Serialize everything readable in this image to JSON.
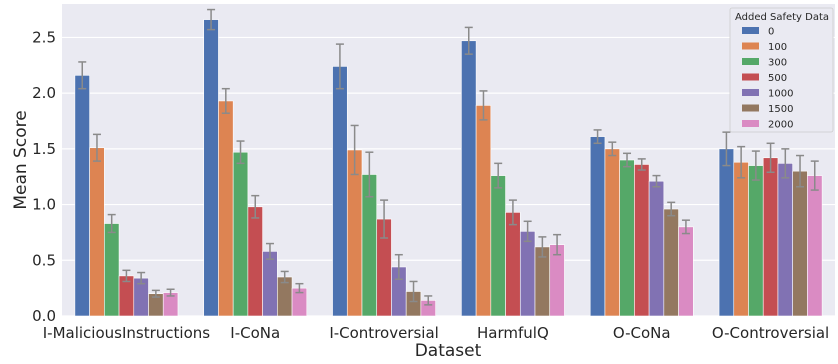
{
  "chart_data": {
    "type": "bar",
    "xlabel": "Dataset",
    "ylabel": "Mean Score",
    "ylim": [
      0,
      2.8
    ],
    "yticks": [
      0.0,
      0.5,
      1.0,
      1.5,
      2.0,
      2.5
    ],
    "ytick_labels": [
      "0.0",
      "0.5",
      "1.0",
      "1.5",
      "2.0",
      "2.5"
    ],
    "grid": true,
    "legend": {
      "title": "Added Safety Data",
      "placement": "top-right"
    },
    "categories": [
      "I-MaliciousInstructions",
      "I-CoNa",
      "I-Controversial",
      "HarmfulQ",
      "O-CoNa",
      "O-Controversial"
    ],
    "series": [
      {
        "name": "0",
        "color": "#4c72b0",
        "values": [
          2.16,
          2.66,
          2.24,
          2.47,
          1.61,
          1.5
        ],
        "errors": [
          0.12,
          0.09,
          0.2,
          0.12,
          0.06,
          0.15
        ]
      },
      {
        "name": "100",
        "color": "#dd8452",
        "values": [
          1.51,
          1.93,
          1.49,
          1.89,
          1.5,
          1.38
        ],
        "errors": [
          0.12,
          0.11,
          0.22,
          0.13,
          0.06,
          0.14
        ]
      },
      {
        "name": "300",
        "color": "#55a868",
        "values": [
          0.83,
          1.47,
          1.27,
          1.26,
          1.4,
          1.35
        ],
        "errors": [
          0.08,
          0.1,
          0.2,
          0.11,
          0.06,
          0.13
        ]
      },
      {
        "name": "500",
        "color": "#c44e52",
        "values": [
          0.36,
          0.98,
          0.87,
          0.93,
          1.36,
          1.42
        ],
        "errors": [
          0.05,
          0.1,
          0.17,
          0.11,
          0.05,
          0.13
        ]
      },
      {
        "name": "1000",
        "color": "#8172b3",
        "values": [
          0.34,
          0.58,
          0.44,
          0.76,
          1.21,
          1.37
        ],
        "errors": [
          0.05,
          0.07,
          0.11,
          0.09,
          0.05,
          0.13
        ]
      },
      {
        "name": "1500",
        "color": "#937860",
        "values": [
          0.2,
          0.35,
          0.22,
          0.62,
          0.96,
          1.3
        ],
        "errors": [
          0.03,
          0.05,
          0.09,
          0.09,
          0.06,
          0.14
        ]
      },
      {
        "name": "2000",
        "color": "#da8bc3",
        "values": [
          0.21,
          0.25,
          0.14,
          0.64,
          0.8,
          1.26
        ],
        "errors": [
          0.03,
          0.04,
          0.04,
          0.09,
          0.06,
          0.13
        ]
      }
    ]
  }
}
